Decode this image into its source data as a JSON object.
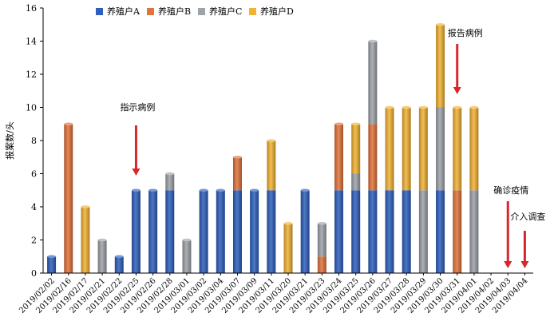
{
  "chart_data": {
    "type": "bar",
    "stacked": true,
    "title": "",
    "xlabel": "",
    "ylabel": "报案数/头",
    "ylim": [
      0,
      16
    ],
    "yticks": [
      0,
      2,
      4,
      6,
      8,
      10,
      12,
      14,
      16
    ],
    "grid": false,
    "legend_position": "top",
    "categories": [
      "2019/02/02",
      "2019/02/16",
      "2019/02/17",
      "2019/02/21",
      "2019/02/22",
      "2019/02/25",
      "2019/02/26",
      "2019/02/28",
      "2019/03/01",
      "2019/03/02",
      "2019/03/04",
      "2019/03/07",
      "2019/03/09",
      "2019/03/11",
      "2019/03/20",
      "2019/03/21",
      "2019/03/23",
      "2019/03/24",
      "2019/03/25",
      "2019/03/26",
      "2019/03/27",
      "2019/03/28",
      "2019/03/29",
      "2019/03/30",
      "2019/03/31",
      "2019/04/01",
      "2019/04/02",
      "2019/04/03",
      "2019/04/04"
    ],
    "series": [
      {
        "name": "养殖户A",
        "color": "#2e5fbd",
        "values": [
          1,
          0,
          0,
          0,
          1,
          5,
          5,
          5,
          0,
          5,
          5,
          5,
          5,
          5,
          0,
          5,
          0,
          5,
          5,
          5,
          5,
          5,
          0,
          5,
          0,
          0,
          0,
          0,
          0
        ]
      },
      {
        "name": "养殖户B",
        "color": "#e2733a",
        "values": [
          0,
          9,
          0,
          0,
          0,
          0,
          0,
          0,
          0,
          0,
          0,
          2,
          0,
          0,
          0,
          0,
          1,
          4,
          0,
          4,
          0,
          0,
          0,
          0,
          5,
          0,
          0,
          0,
          0
        ]
      },
      {
        "name": "养殖户C",
        "color": "#9ea3a8",
        "values": [
          0,
          0,
          0,
          2,
          0,
          0,
          0,
          1,
          2,
          0,
          0,
          0,
          0,
          0,
          0,
          0,
          2,
          0,
          1,
          5,
          0,
          0,
          5,
          5,
          0,
          5,
          0,
          0,
          0
        ]
      },
      {
        "name": "养殖户D",
        "color": "#f2b234",
        "values": [
          0,
          0,
          4,
          0,
          0,
          0,
          0,
          0,
          0,
          0,
          0,
          0,
          0,
          3,
          3,
          0,
          0,
          0,
          3,
          0,
          5,
          5,
          5,
          5,
          5,
          5,
          0,
          0,
          0
        ]
      }
    ],
    "annotations": [
      {
        "text": "指示病例",
        "category": "2019/02/25"
      },
      {
        "text": "报告病例",
        "category": "2019/03/31"
      },
      {
        "text": "确诊疫情",
        "category": "2019/04/03"
      },
      {
        "text": "介入调查",
        "category": "2019/04/04"
      }
    ]
  }
}
